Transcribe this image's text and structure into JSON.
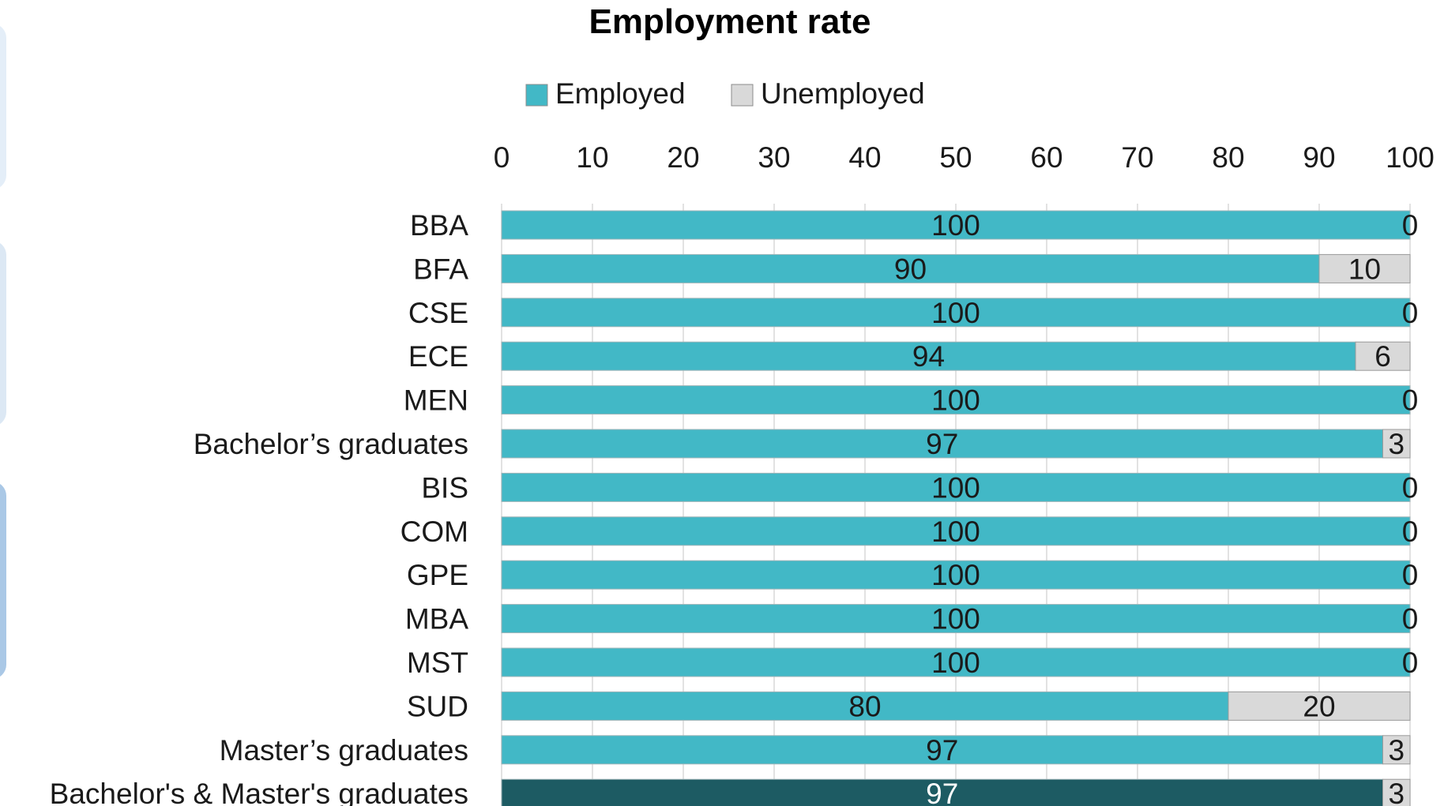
{
  "chart_data": {
    "type": "bar",
    "orientation": "horizontal",
    "stacked": true,
    "title": "Employment rate",
    "legend_position": "top",
    "grid": true,
    "xlim": [
      0,
      100
    ],
    "x_ticks": [
      "0",
      "10",
      "20",
      "30",
      "40",
      "50",
      "60",
      "70",
      "80",
      "90",
      "100"
    ],
    "categories": [
      "BBA",
      "BFA",
      "CSE",
      "ECE",
      "MEN",
      "Bachelor’s graduates",
      "BIS",
      "COM",
      "GPE",
      "MBA",
      "MST",
      "SUD",
      "Master’s graduates",
      "Bachelor's & Master's graduates"
    ],
    "series": [
      {
        "name": "Employed",
        "values": [
          100,
          90,
          100,
          94,
          100,
          97,
          100,
          100,
          100,
          100,
          100,
          80,
          97,
          97
        ]
      },
      {
        "name": "Unemployed",
        "values": [
          0,
          10,
          0,
          6,
          0,
          3,
          0,
          0,
          0,
          0,
          0,
          20,
          3,
          3
        ]
      }
    ],
    "colors": {
      "employed": "#42B8C6",
      "employed_highlight": "#1D5B63",
      "unemployed": "#D9D9D9"
    },
    "highlight_category_index": 13
  }
}
